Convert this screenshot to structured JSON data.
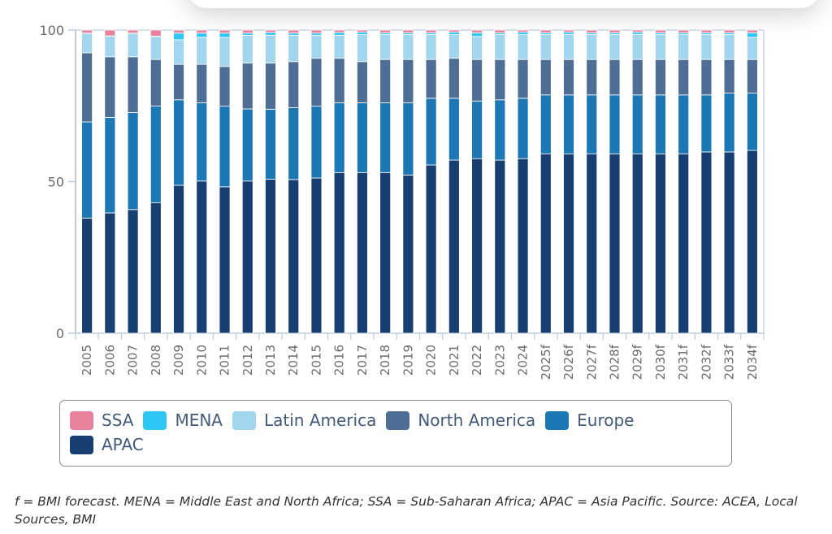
{
  "chart_data": {
    "type": "bar",
    "stacked": true,
    "title": "",
    "xlabel": "",
    "ylabel": "",
    "ylim": [
      0,
      100
    ],
    "yticks": [
      0,
      50,
      100
    ],
    "grid": false,
    "legend_placement": "bottom",
    "categories": [
      "2005",
      "2006",
      "2007",
      "2008",
      "2009",
      "2010",
      "2011",
      "2012",
      "2013",
      "2014",
      "2015",
      "2016",
      "2017",
      "2018",
      "2019",
      "2020",
      "2021",
      "2022",
      "2023",
      "2024",
      "2025f",
      "2026f",
      "2027f",
      "2028f",
      "2029f",
      "2030f",
      "2031f",
      "2032f",
      "2033f",
      "2034f"
    ],
    "series": [
      {
        "name": "APAC",
        "color": "#173f72",
        "values": [
          38.0,
          39.7,
          40.8,
          43.0,
          48.8,
          50.2,
          48.3,
          50.2,
          50.8,
          50.7,
          51.2,
          53.0,
          53.0,
          53.0,
          52.2,
          55.5,
          57.1,
          57.6,
          57.1,
          57.6,
          59.2,
          59.2,
          59.2,
          59.2,
          59.2,
          59.2,
          59.2,
          59.8,
          59.8,
          60.3
        ]
      },
      {
        "name": "Europe",
        "color": "#1b78b4",
        "values": [
          31.7,
          31.5,
          32.0,
          31.9,
          28.2,
          25.8,
          26.6,
          23.8,
          23.1,
          23.7,
          23.7,
          23.0,
          23.0,
          23.0,
          23.8,
          22.0,
          20.4,
          19.0,
          19.9,
          19.9,
          19.4,
          19.4,
          19.4,
          19.4,
          19.4,
          19.4,
          19.4,
          18.8,
          19.4,
          18.9
        ]
      },
      {
        "name": "North America",
        "color": "#4e6e96",
        "values": [
          22.8,
          20.0,
          18.4,
          15.4,
          11.7,
          12.7,
          13.1,
          15.1,
          15.2,
          15.2,
          15.8,
          14.7,
          13.6,
          14.3,
          14.3,
          12.8,
          13.2,
          13.7,
          13.3,
          12.8,
          11.7,
          11.7,
          11.7,
          11.7,
          11.7,
          11.7,
          11.7,
          11.7,
          11.1,
          11.1
        ]
      },
      {
        "name": "Latin America",
        "color": "#a2d6ee",
        "values": [
          6.4,
          6.8,
          7.7,
          7.6,
          8.1,
          8.9,
          9.6,
          9.2,
          9.2,
          8.7,
          7.6,
          7.6,
          8.9,
          8.2,
          8.2,
          8.2,
          7.8,
          7.6,
          8.2,
          8.2,
          8.2,
          8.3,
          8.2,
          8.2,
          8.3,
          8.2,
          8.2,
          8.2,
          8.2,
          7.3
        ]
      },
      {
        "name": "MENA",
        "color": "#2ec6f3",
        "values": [
          0.1,
          0.1,
          0.1,
          0.1,
          2.2,
          1.4,
          1.4,
          0.7,
          0.9,
          0.7,
          0.7,
          0.9,
          0.8,
          0.6,
          0.6,
          0.6,
          0.8,
          1.2,
          0.6,
          0.8,
          0.6,
          0.7,
          0.6,
          0.6,
          0.7,
          0.6,
          0.6,
          0.6,
          0.6,
          1.5
        ]
      },
      {
        "name": "SSA",
        "color": "#e8829c",
        "values": [
          1.0,
          1.9,
          1.0,
          2.0,
          1.0,
          1.0,
          1.0,
          1.0,
          0.8,
          1.0,
          1.0,
          0.8,
          0.7,
          0.9,
          0.9,
          0.9,
          0.7,
          0.9,
          0.9,
          0.7,
          0.9,
          0.7,
          0.9,
          0.9,
          0.7,
          0.9,
          0.9,
          0.9,
          0.9,
          0.9
        ]
      }
    ]
  },
  "legend": {
    "items": [
      {
        "label": "SSA",
        "color": "#e8829c"
      },
      {
        "label": "MENA",
        "color": "#2ec6f3"
      },
      {
        "label": "Latin America",
        "color": "#a2d6ee"
      },
      {
        "label": "North America",
        "color": "#4e6e96"
      },
      {
        "label": "Europe",
        "color": "#1b78b4"
      },
      {
        "label": "APAC",
        "color": "#173f72"
      }
    ]
  },
  "caption": "f = BMI forecast. MENA = Middle East and North Africa; SSA = Sub-Saharan Africa; APAC = Asia Pacific. Source: ACEA, Local Sources, BMI"
}
